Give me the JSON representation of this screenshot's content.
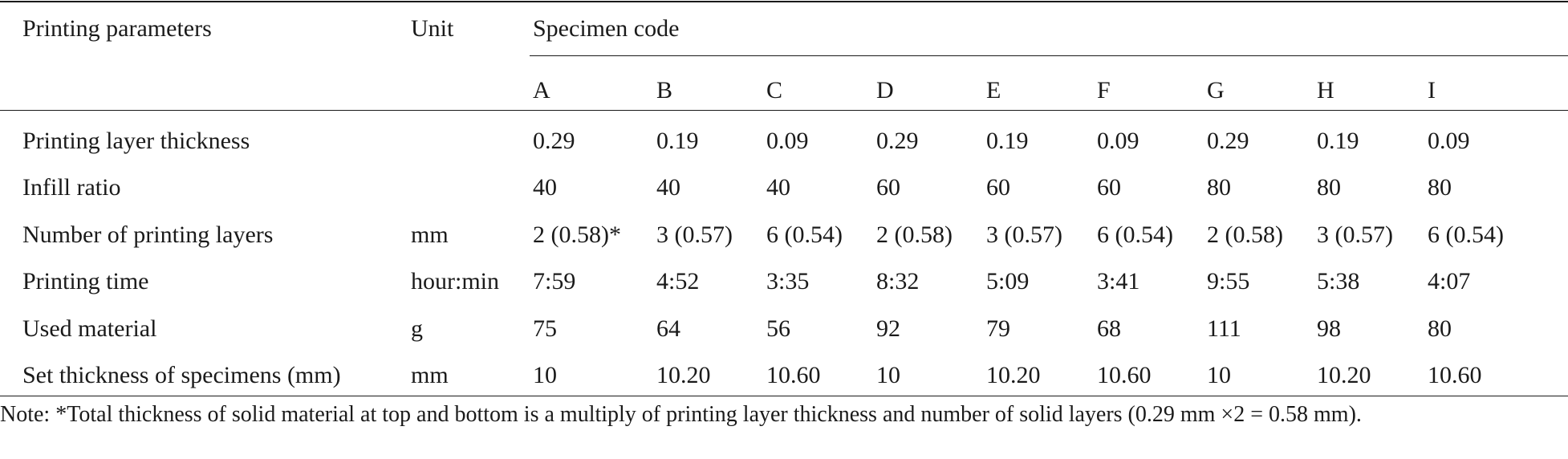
{
  "table": {
    "header": {
      "param_label": "Printing parameters",
      "unit_label": "Unit",
      "specimen_label": "Specimen code",
      "codes": [
        "A",
        "B",
        "C",
        "D",
        "E",
        "F",
        "G",
        "H",
        "I"
      ]
    },
    "rows": [
      {
        "param": "Printing layer thickness",
        "unit": "",
        "values": [
          "0.29",
          "0.19",
          "0.09",
          "0.29",
          "0.19",
          "0.09",
          "0.29",
          "0.19",
          "0.09"
        ]
      },
      {
        "param": "Infill ratio",
        "unit": "",
        "values": [
          "40",
          "40",
          "40",
          "60",
          "60",
          "60",
          "80",
          "80",
          "80"
        ]
      },
      {
        "param": "Number of printing layers",
        "unit": "mm",
        "values": [
          "2 (0.58)*",
          "3 (0.57)",
          "6 (0.54)",
          "2 (0.58)",
          "3 (0.57)",
          "6 (0.54)",
          "2 (0.58)",
          "3 (0.57)",
          "6 (0.54)"
        ]
      },
      {
        "param": "Printing time",
        "unit": "hour:min",
        "values": [
          "7:59",
          "4:52",
          "3:35",
          "8:32",
          "5:09",
          "3:41",
          "9:55",
          "5:38",
          "4:07"
        ]
      },
      {
        "param": "Used material",
        "unit": "g",
        "values": [
          "75",
          "64",
          "56",
          "92",
          "79",
          "68",
          "111",
          "98",
          "80"
        ]
      },
      {
        "param": "Set thickness of specimens (mm)",
        "unit": "mm",
        "values": [
          "10",
          "10.20",
          "10.60",
          "10",
          "10.20",
          "10.60",
          "10",
          "10.20",
          "10.60"
        ]
      }
    ],
    "note": "Note: *Total thickness of solid material at top and bottom is a multiply of printing layer thickness and number of solid layers (0.29 mm ×2 = 0.58 mm)."
  }
}
